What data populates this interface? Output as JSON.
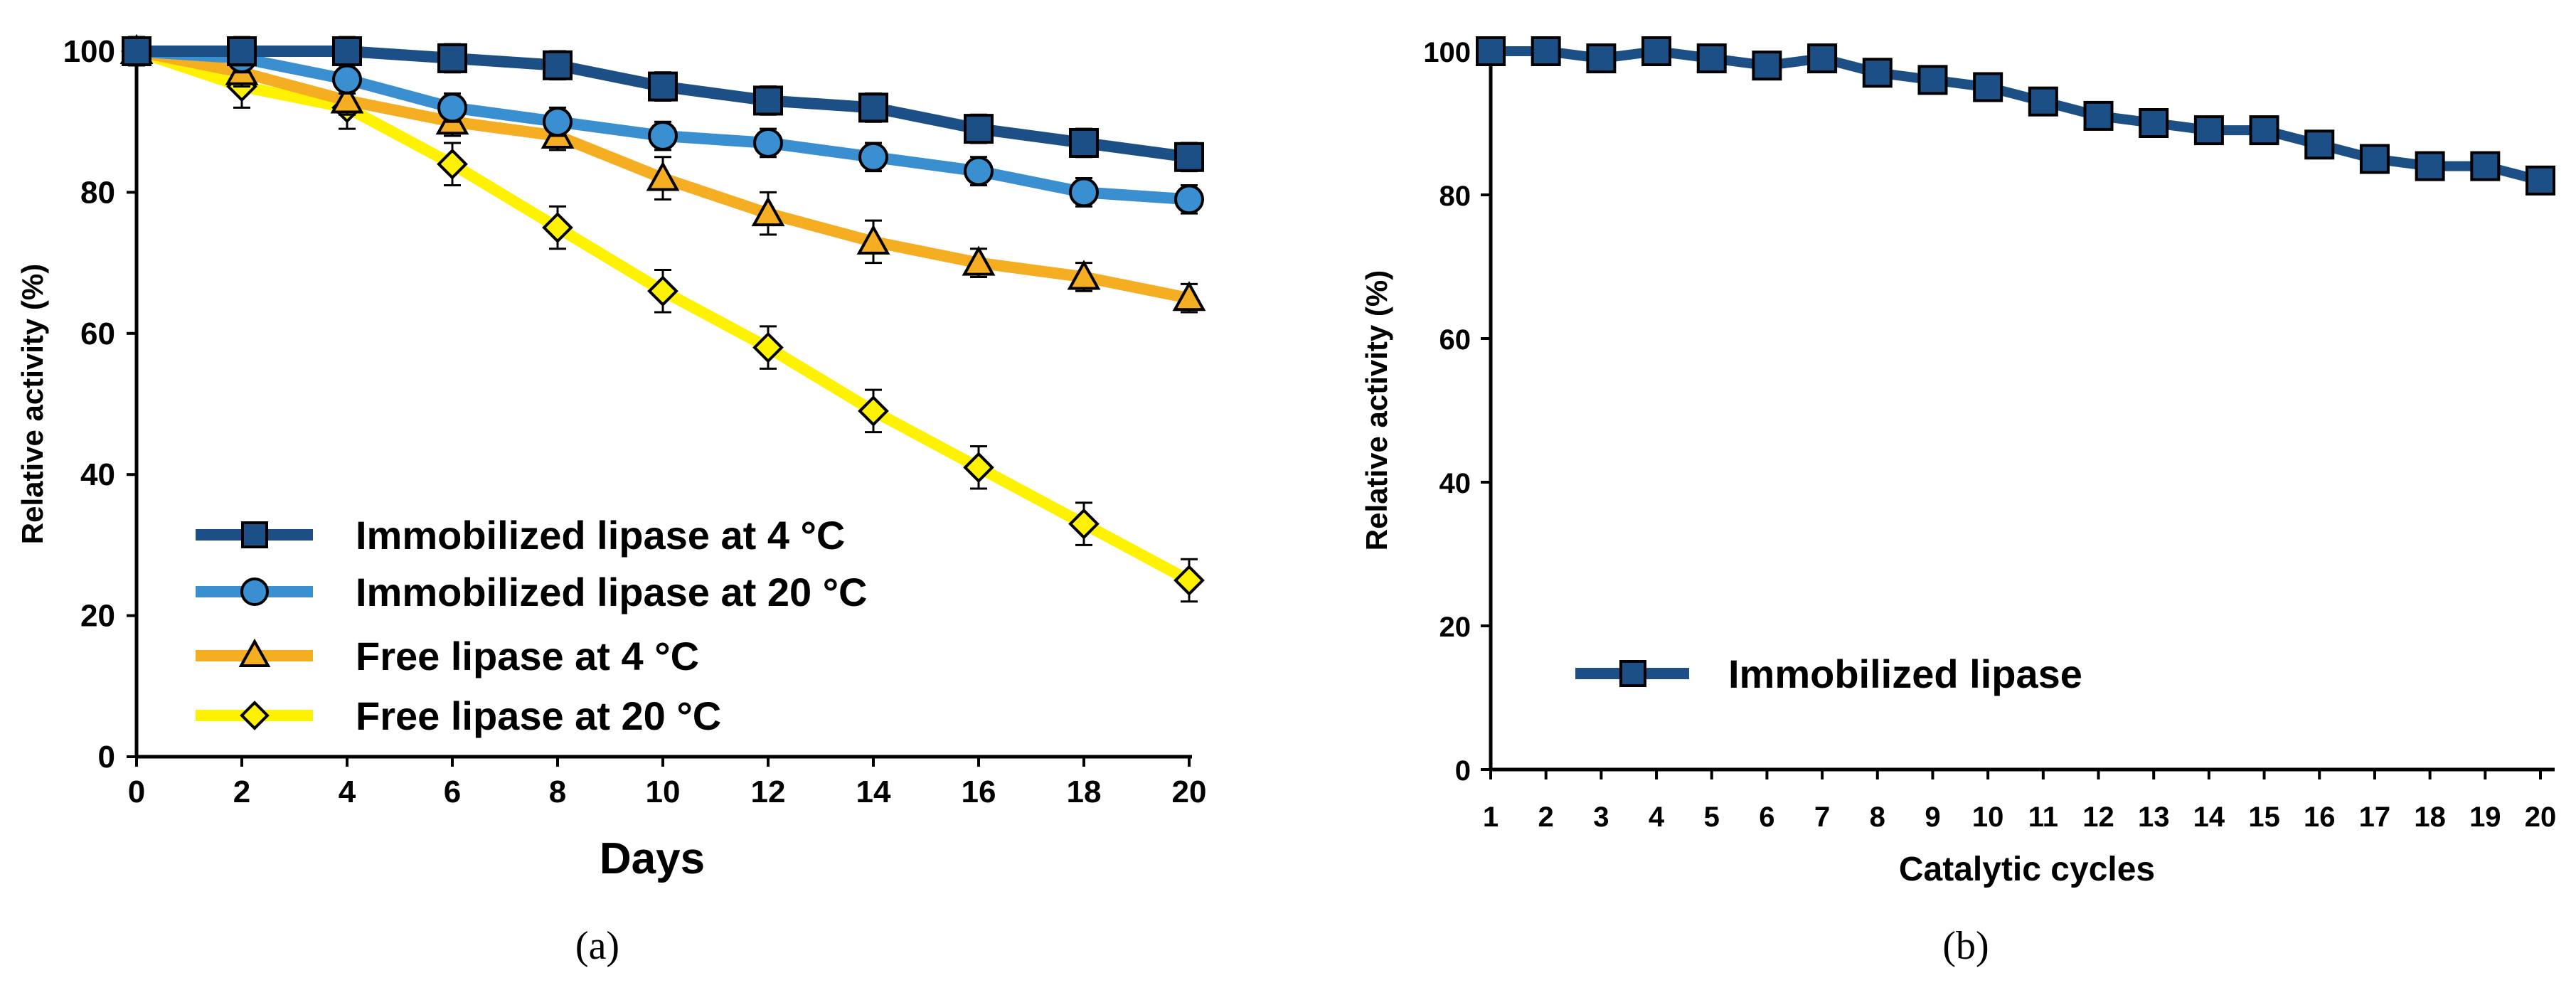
{
  "chart_data": [
    {
      "type": "line",
      "caption": "(a)",
      "xlabel": "Days",
      "ylabel": "Relative activity (%)",
      "xlim": [
        0,
        20
      ],
      "ylim": [
        0,
        100
      ],
      "x_ticks": [
        0,
        2,
        4,
        6,
        8,
        10,
        12,
        14,
        16,
        18,
        20
      ],
      "y_ticks": [
        0,
        20,
        40,
        60,
        80,
        100
      ],
      "x": [
        0,
        2,
        4,
        6,
        8,
        10,
        12,
        14,
        16,
        18,
        20
      ],
      "legend_position": "bottom-left",
      "series": [
        {
          "name": "Immobilized lipase at 4 °C",
          "color": "#1c4f86",
          "marker": "square",
          "values": [
            100,
            100,
            100,
            99,
            98,
            95,
            93,
            92,
            89,
            87,
            85
          ],
          "errors": [
            2,
            2,
            2,
            2,
            2,
            2,
            2,
            2,
            2,
            2,
            2
          ]
        },
        {
          "name": "Immobilized lipase at 20 °C",
          "color": "#3a8fd1",
          "marker": "circle",
          "values": [
            100,
            99,
            96,
            92,
            90,
            88,
            87,
            85,
            83,
            80,
            79
          ],
          "errors": [
            2,
            2,
            2,
            2,
            2,
            2,
            2,
            2,
            2,
            2,
            2
          ]
        },
        {
          "name": "Free lipase at 4 °C",
          "color": "#f5ad22",
          "marker": "triangle",
          "values": [
            100,
            97,
            93,
            90,
            88,
            82,
            77,
            73,
            70,
            68,
            65
          ],
          "errors": [
            2,
            2,
            2,
            2,
            2,
            3,
            3,
            3,
            2,
            2,
            2
          ]
        },
        {
          "name": "Free lipase at 20 °C",
          "color": "#fff200",
          "marker": "diamond",
          "values": [
            100,
            95,
            92,
            84,
            75,
            66,
            58,
            49,
            41,
            33,
            25
          ],
          "errors": [
            2,
            3,
            3,
            3,
            3,
            3,
            3,
            3,
            3,
            3,
            3
          ]
        }
      ]
    },
    {
      "type": "line",
      "caption": "(b)",
      "xlabel": "Catalytic cycles",
      "ylabel": "Relative activity (%)",
      "xlim": [
        1,
        20
      ],
      "ylim": [
        0,
        100
      ],
      "x_ticks": [
        1,
        2,
        3,
        4,
        5,
        6,
        7,
        8,
        9,
        10,
        11,
        12,
        13,
        14,
        15,
        16,
        17,
        18,
        19,
        20
      ],
      "y_ticks": [
        0,
        20,
        40,
        60,
        80,
        100
      ],
      "x": [
        1,
        2,
        3,
        4,
        5,
        6,
        7,
        8,
        9,
        10,
        11,
        12,
        13,
        14,
        15,
        16,
        17,
        18,
        19,
        20
      ],
      "legend_position": "bottom-left",
      "series": [
        {
          "name": "Immobilized lipase",
          "color": "#1c4f86",
          "marker": "square",
          "values": [
            100,
            100,
            99,
            100,
            99,
            98,
            99,
            97,
            96,
            95,
            93,
            91,
            90,
            89,
            89,
            87,
            85,
            84,
            84,
            82
          ]
        }
      ]
    }
  ]
}
